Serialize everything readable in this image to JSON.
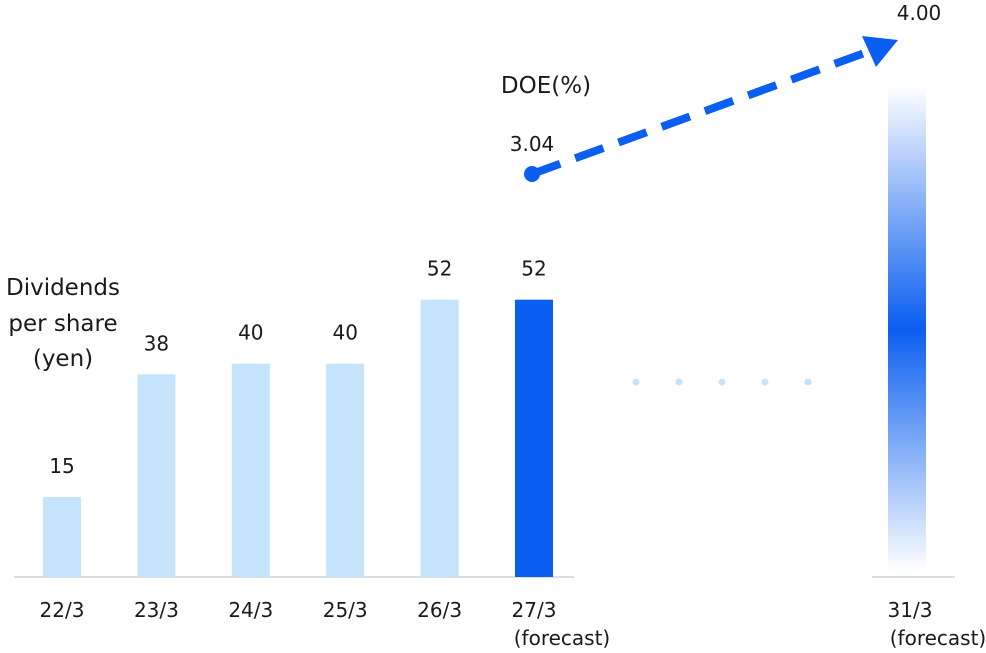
{
  "chart_data": {
    "type": "bar",
    "categories": [
      "22/3",
      "23/3",
      "24/3",
      "25/3",
      "26/3",
      "27/3"
    ],
    "category_notes": [
      "",
      "",
      "",
      "",
      "",
      "(forecast)"
    ],
    "values": [
      15,
      38,
      40,
      40,
      52,
      52
    ],
    "y_label_lines": [
      "Dividends",
      "per share",
      "(yen)"
    ],
    "ylim": [
      0,
      60
    ],
    "grid": false,
    "colors": {
      "actual": "#c5e3fb",
      "forecast": "#0a5ef0"
    },
    "target": {
      "category": "31/3",
      "note": "(forecast)"
    },
    "doe": {
      "label": "DOE(%)",
      "start_value": "3.04",
      "end_value": "4.00",
      "color": "#0a5ef0"
    },
    "gap_indicator": "dots"
  }
}
